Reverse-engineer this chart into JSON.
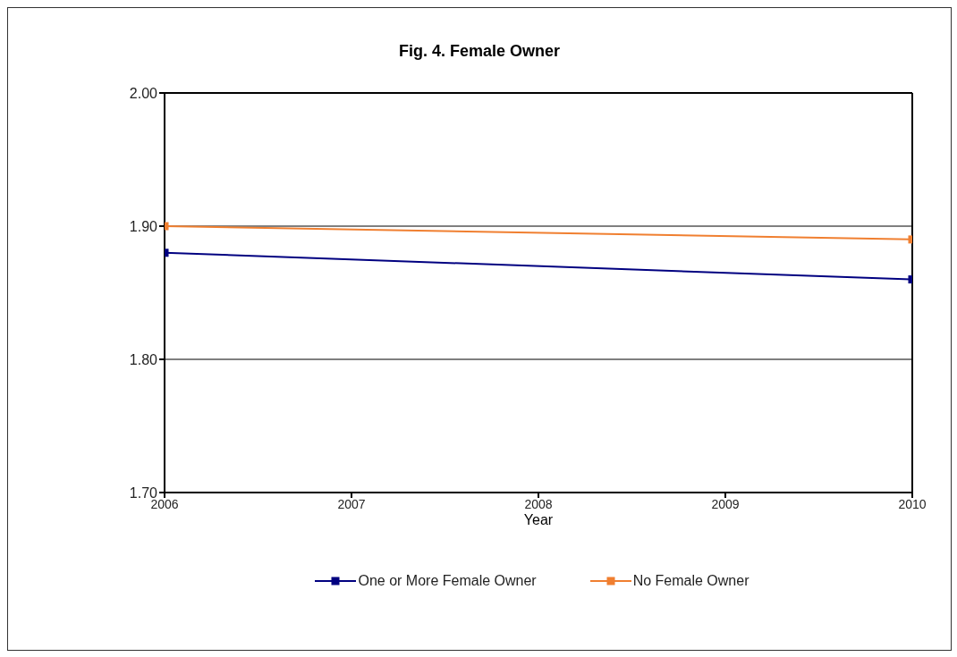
{
  "chart_data": {
    "type": "line",
    "title": "Fig. 4. Female Owner",
    "xlabel": "Year",
    "x": [
      2006,
      2010
    ],
    "series": [
      {
        "name": "One or More Female Owner",
        "color": "#000080",
        "values": [
          1.88,
          1.86
        ]
      },
      {
        "name": "No Female Owner",
        "color": "#f07f30",
        "values": [
          1.9,
          1.89
        ]
      }
    ],
    "xlim": [
      2006,
      2010
    ],
    "xticks": [
      2006,
      2007,
      2008,
      2009,
      2010
    ],
    "ylim": [
      1.7,
      2.0
    ],
    "yticks": [
      {
        "value": 1.7,
        "label": "1.70"
      },
      {
        "value": 1.8,
        "label": "1.80"
      },
      {
        "value": 1.9,
        "label": "1.90"
      },
      {
        "value": 2.0,
        "label": "2.00"
      }
    ],
    "grid": "y",
    "legend": "bottom",
    "marker": "square",
    "line_style": "solid"
  }
}
